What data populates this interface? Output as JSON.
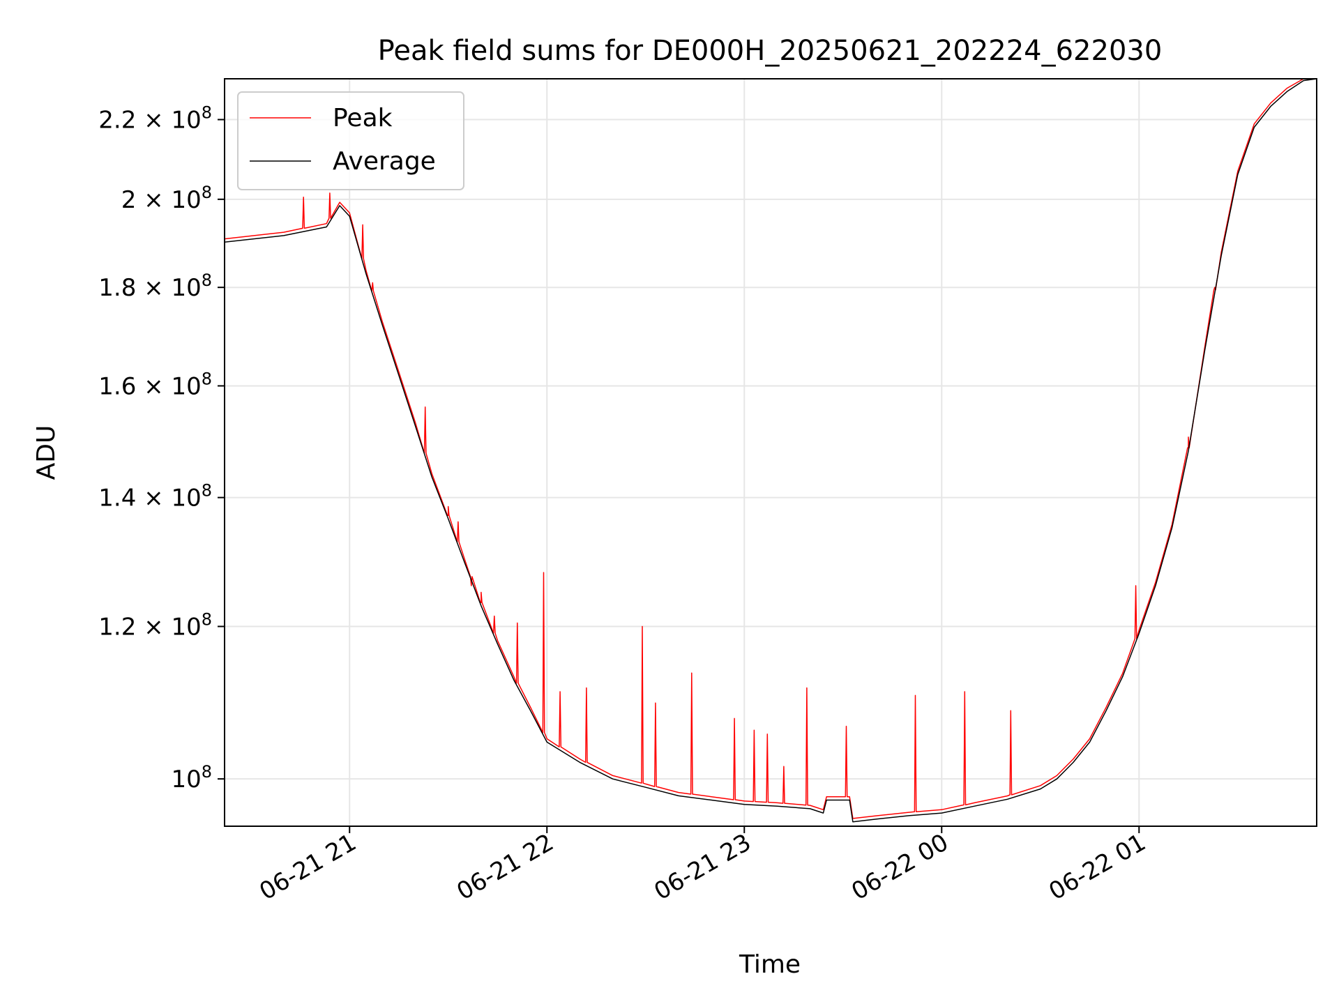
{
  "chart_data": {
    "type": "line",
    "title": "Peak field sums for DE000H_20250621_202224_622030",
    "xlabel": "Time",
    "ylabel": "ADU",
    "y_scale": "log",
    "ylim": [
      94500000,
      231000000
    ],
    "xlim": [
      "2025-06-21T20:22:00",
      "2025-06-22T01:54:00"
    ],
    "grid": true,
    "legend_position": "upper left",
    "x_ticks": [
      {
        "value": "2025-06-21T21:00",
        "label": "06-21 21"
      },
      {
        "value": "2025-06-21T22:00",
        "label": "06-21 22"
      },
      {
        "value": "2025-06-21T23:00",
        "label": "06-21 23"
      },
      {
        "value": "2025-06-22T00:00",
        "label": "06-22 00"
      },
      {
        "value": "2025-06-22T01:00",
        "label": "06-22 01"
      }
    ],
    "y_ticks": [
      {
        "value": 100000000,
        "mantissa": "",
        "exponent": "8"
      },
      {
        "value": 120000000,
        "mantissa": "1.2",
        "exponent": "8"
      },
      {
        "value": 140000000,
        "mantissa": "1.4",
        "exponent": "8"
      },
      {
        "value": 160000000,
        "mantissa": "1.6",
        "exponent": "8"
      },
      {
        "value": 180000000,
        "mantissa": "1.8",
        "exponent": "8"
      },
      {
        "value": 200000000,
        "mantissa": "2",
        "exponent": "8"
      },
      {
        "value": 220000000,
        "mantissa": "2.2",
        "exponent": "8"
      }
    ],
    "series": [
      {
        "name": "Peak",
        "color": "#ff0000"
      },
      {
        "name": "Average",
        "color": "#000000"
      }
    ],
    "x": [
      "2025-06-21T20:22",
      "2025-06-21T20:40",
      "2025-06-21T20:53",
      "2025-06-21T20:57",
      "2025-06-21T21:00",
      "2025-06-21T21:05",
      "2025-06-21T21:10",
      "2025-06-21T21:15",
      "2025-06-21T21:20",
      "2025-06-21T21:25",
      "2025-06-21T21:30",
      "2025-06-21T21:35",
      "2025-06-21T21:40",
      "2025-06-21T21:45",
      "2025-06-21T21:50",
      "2025-06-21T21:55",
      "2025-06-21T22:00",
      "2025-06-21T22:10",
      "2025-06-21T22:20",
      "2025-06-21T22:30",
      "2025-06-21T22:40",
      "2025-06-21T22:50",
      "2025-06-21T23:00",
      "2025-06-21T23:10",
      "2025-06-21T23:20",
      "2025-06-21T23:24",
      "2025-06-21T23:25",
      "2025-06-21T23:32",
      "2025-06-21T23:33",
      "2025-06-21T23:40",
      "2025-06-21T23:50",
      "2025-06-22T00:00",
      "2025-06-22T00:10",
      "2025-06-22T00:20",
      "2025-06-22T00:30",
      "2025-06-22T00:35",
      "2025-06-22T00:40",
      "2025-06-22T00:45",
      "2025-06-22T00:50",
      "2025-06-22T00:55",
      "2025-06-22T01:00",
      "2025-06-22T01:05",
      "2025-06-22T01:10",
      "2025-06-22T01:15",
      "2025-06-22T01:20",
      "2025-06-22T01:25",
      "2025-06-22T01:30",
      "2025-06-22T01:35",
      "2025-06-22T01:40",
      "2025-06-22T01:45",
      "2025-06-22T01:50",
      "2025-06-22T01:54"
    ],
    "average_values": [
      190000000,
      191500000,
      193500000,
      198500000,
      196000000,
      183000000,
      172000000,
      162000000,
      152500000,
      143500000,
      136500000,
      129500000,
      123000000,
      117500000,
      112500000,
      108500000,
      104500000,
      102000000,
      100000000,
      99000000,
      98000000,
      97500000,
      97000000,
      96800000,
      96500000,
      96000000,
      97500000,
      97500000,
      95000000,
      95300000,
      95700000,
      96000000,
      96800000,
      97600000,
      98800000,
      100000000,
      102000000,
      104500000,
      108500000,
      113000000,
      119000000,
      126000000,
      135000000,
      148000000,
      167000000,
      187000000,
      206000000,
      218000000,
      223500000,
      227500000,
      230500000,
      231500000
    ],
    "peak_spikes": [
      {
        "x": "2025-06-21T20:46",
        "y": 200500000
      },
      {
        "x": "2025-06-21T20:54",
        "y": 201500000
      },
      {
        "x": "2025-06-21T21:04",
        "y": 194000000
      },
      {
        "x": "2025-06-21T21:07",
        "y": 181000000
      },
      {
        "x": "2025-06-21T21:23",
        "y": 156000000
      },
      {
        "x": "2025-06-21T21:30",
        "y": 138500000
      },
      {
        "x": "2025-06-21T21:33",
        "y": 136000000
      },
      {
        "x": "2025-06-21T21:37",
        "y": 126000000
      },
      {
        "x": "2025-06-21T21:40",
        "y": 125000000
      },
      {
        "x": "2025-06-21T21:44",
        "y": 121500000
      },
      {
        "x": "2025-06-21T21:51",
        "y": 120500000
      },
      {
        "x": "2025-06-21T21:59",
        "y": 128000000
      },
      {
        "x": "2025-06-21T22:04",
        "y": 111000000
      },
      {
        "x": "2025-06-21T22:12",
        "y": 111500000
      },
      {
        "x": "2025-06-21T22:29",
        "y": 120000000
      },
      {
        "x": "2025-06-21T22:33",
        "y": 109500000
      },
      {
        "x": "2025-06-21T22:44",
        "y": 113500000
      },
      {
        "x": "2025-06-21T22:57",
        "y": 107500000
      },
      {
        "x": "2025-06-21T23:03",
        "y": 106000000
      },
      {
        "x": "2025-06-21T23:07",
        "y": 105500000
      },
      {
        "x": "2025-06-21T23:12",
        "y": 101500000
      },
      {
        "x": "2025-06-21T23:19",
        "y": 111500000
      },
      {
        "x": "2025-06-21T23:31",
        "y": 106500000
      },
      {
        "x": "2025-06-21T23:52",
        "y": 110500000
      },
      {
        "x": "2025-06-22T00:07",
        "y": 111000000
      },
      {
        "x": "2025-06-22T00:21",
        "y": 108500000
      },
      {
        "x": "2025-06-22T00:59",
        "y": 126000000
      },
      {
        "x": "2025-06-22T01:15",
        "y": 150500000
      },
      {
        "x": "2025-06-22T01:23",
        "y": 180000000
      }
    ]
  }
}
